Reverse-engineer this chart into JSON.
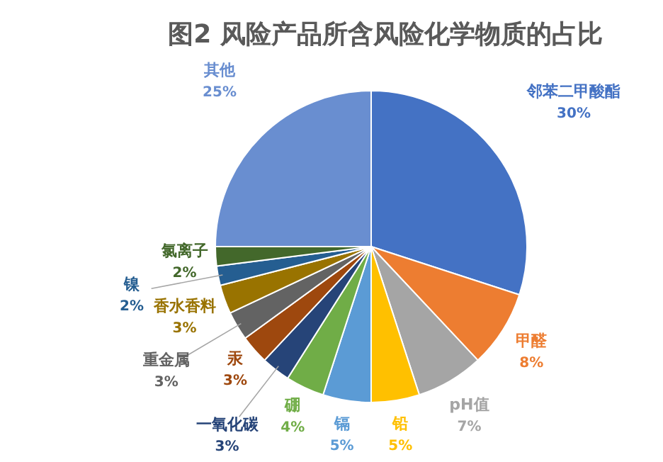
{
  "chart_data": {
    "type": "pie",
    "title": "图2 风险产品所含风险化学物质的占比",
    "categories": [
      "邻苯二甲酸酯",
      "甲醛",
      "pH值",
      "铅",
      "镉",
      "硼",
      "一氧化碳",
      "汞",
      "重金属",
      "香水香料",
      "镍",
      "氯离子",
      "其他"
    ],
    "values": [
      30,
      8,
      7,
      5,
      5,
      4,
      3,
      3,
      3,
      3,
      2,
      2,
      25
    ],
    "colors": [
      "#4472c4",
      "#ed7d31",
      "#a5a5a5",
      "#ffc000",
      "#5b9bd5",
      "#70ad47",
      "#264478",
      "#9e480e",
      "#636363",
      "#997300",
      "#255e91",
      "#43682b",
      "#698ed0"
    ],
    "value_labels": [
      "30%",
      "8%",
      "7%",
      "5%",
      "5%",
      "4%",
      "3%",
      "3%",
      "3%",
      "3%",
      "2%",
      "2%",
      "25%"
    ],
    "legend": false
  }
}
